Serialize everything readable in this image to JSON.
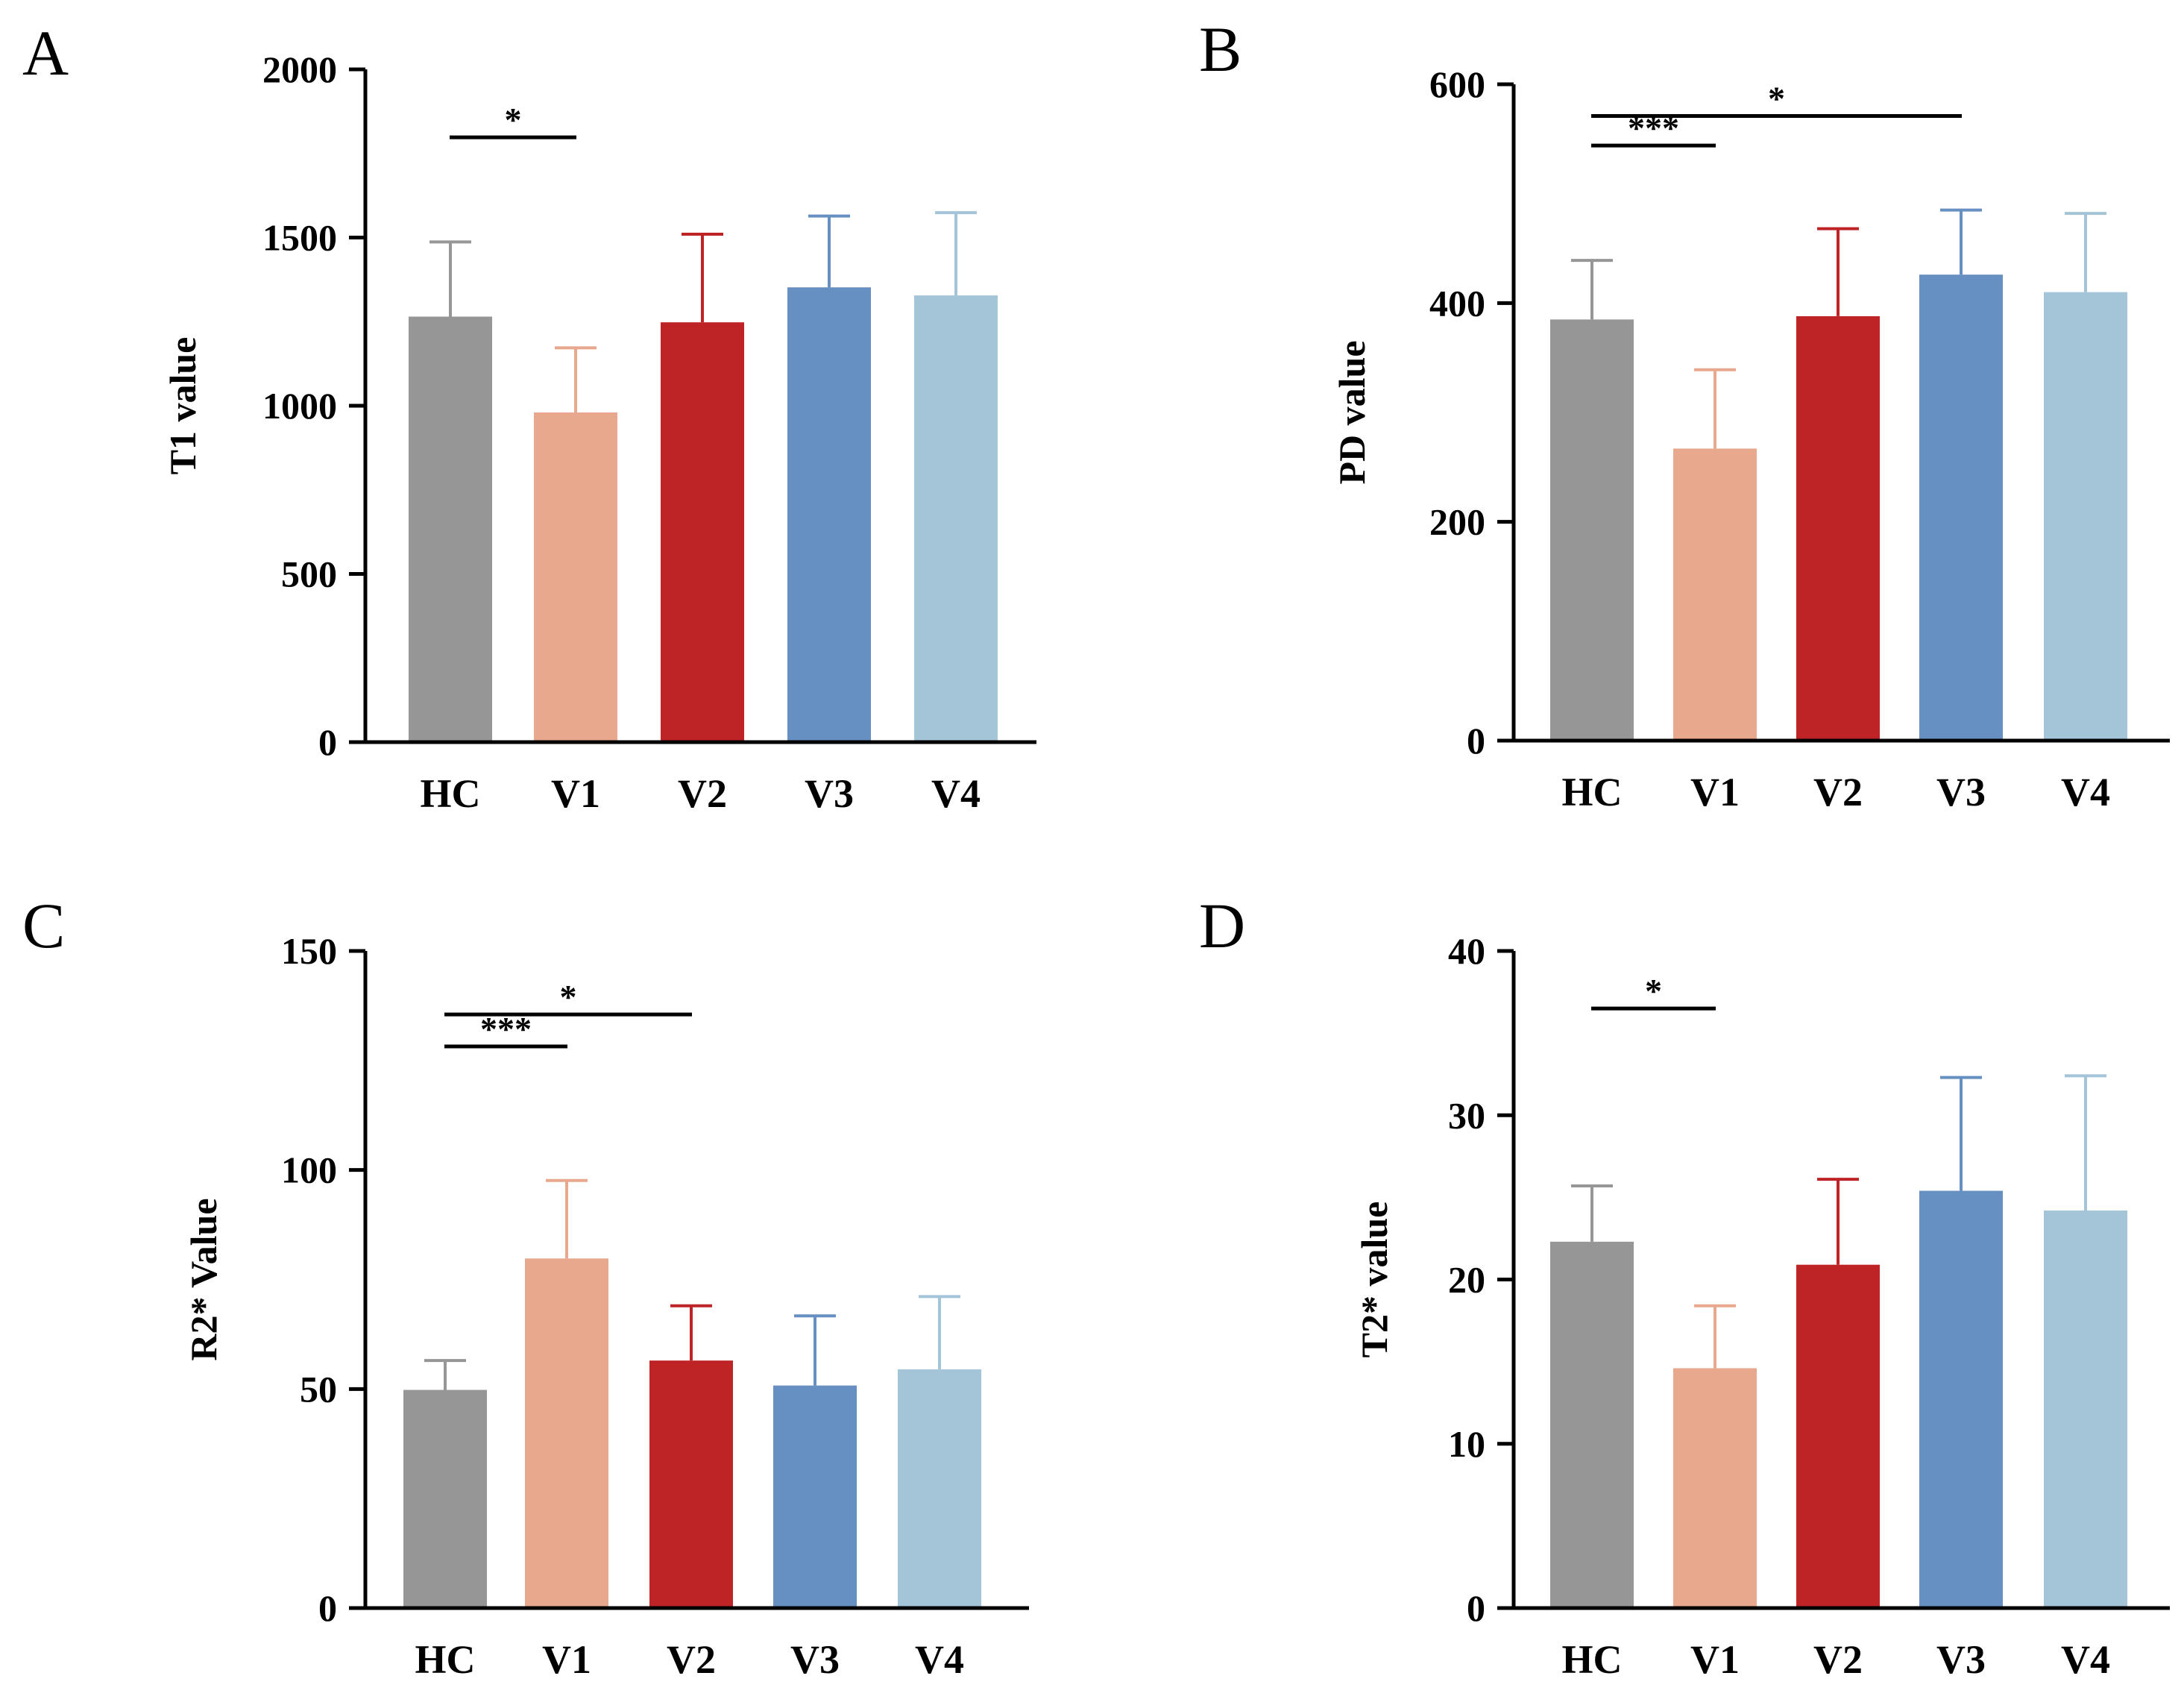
{
  "colors": {
    "HC": "#969696",
    "V1": "#e8a88e",
    "V2": "#be2326",
    "V3": "#6690c2",
    "V4": "#a4c4d7",
    "axis": "#000000"
  },
  "chart_data": [
    {
      "panel": "A",
      "type": "bar",
      "title": "",
      "xlabel": "",
      "ylabel": "T1 value",
      "categories": [
        "HC",
        "V1",
        "V2",
        "V3",
        "V4"
      ],
      "values": [
        1265,
        980,
        1248,
        1352,
        1328
      ],
      "errors": [
        222,
        192,
        262,
        212,
        246
      ],
      "ylim": [
        0,
        2000
      ],
      "yticks": [
        0,
        500,
        1000,
        1500,
        2000
      ],
      "grid": false,
      "legend": "none",
      "significance": [
        {
          "from": "HC",
          "to": "V1",
          "label": "*",
          "y": 1798
        }
      ]
    },
    {
      "panel": "B",
      "type": "bar",
      "title": "",
      "xlabel": "",
      "ylabel": "PD value",
      "categories": [
        "HC",
        "V1",
        "V2",
        "V3",
        "V4"
      ],
      "values": [
        385,
        267,
        388,
        426,
        410
      ],
      "errors": [
        54,
        72,
        80,
        59,
        72
      ],
      "ylim": [
        0,
        600
      ],
      "yticks": [
        0,
        200,
        400,
        600
      ],
      "grid": false,
      "legend": "none",
      "significance": [
        {
          "from": "HC",
          "to": "V1",
          "label": "***",
          "y": 544
        },
        {
          "from": "HC",
          "to": "V3",
          "label": "*",
          "y": 571
        }
      ]
    },
    {
      "panel": "C",
      "type": "bar",
      "title": "",
      "xlabel": "",
      "ylabel": "R2* Value",
      "categories": [
        "HC",
        "V1",
        "V2",
        "V3",
        "V4"
      ],
      "values": [
        49.8,
        79.8,
        56.5,
        50.8,
        54.5
      ],
      "errors": [
        6.7,
        17.8,
        12.5,
        15.9,
        16.6
      ],
      "ylim": [
        0,
        150
      ],
      "yticks": [
        0,
        50,
        100,
        150
      ],
      "grid": false,
      "legend": "none",
      "significance": [
        {
          "from": "HC",
          "to": "V1",
          "label": "***",
          "y": 128.2
        },
        {
          "from": "HC",
          "to": "V2",
          "label": "*",
          "y": 135.5
        }
      ]
    },
    {
      "panel": "D",
      "type": "bar",
      "title": "",
      "xlabel": "",
      "ylabel": "T2* value",
      "categories": [
        "HC",
        "V1",
        "V2",
        "V3",
        "V4"
      ],
      "values": [
        22.3,
        14.6,
        20.9,
        25.4,
        24.2
      ],
      "errors": [
        3.4,
        3.8,
        5.2,
        6.9,
        8.2
      ],
      "ylim": [
        0,
        40
      ],
      "yticks": [
        0,
        10,
        20,
        30,
        40
      ],
      "grid": false,
      "legend": "none",
      "significance": [
        {
          "from": "HC",
          "to": "V1",
          "label": "*",
          "y": 36.5
        }
      ]
    }
  ]
}
